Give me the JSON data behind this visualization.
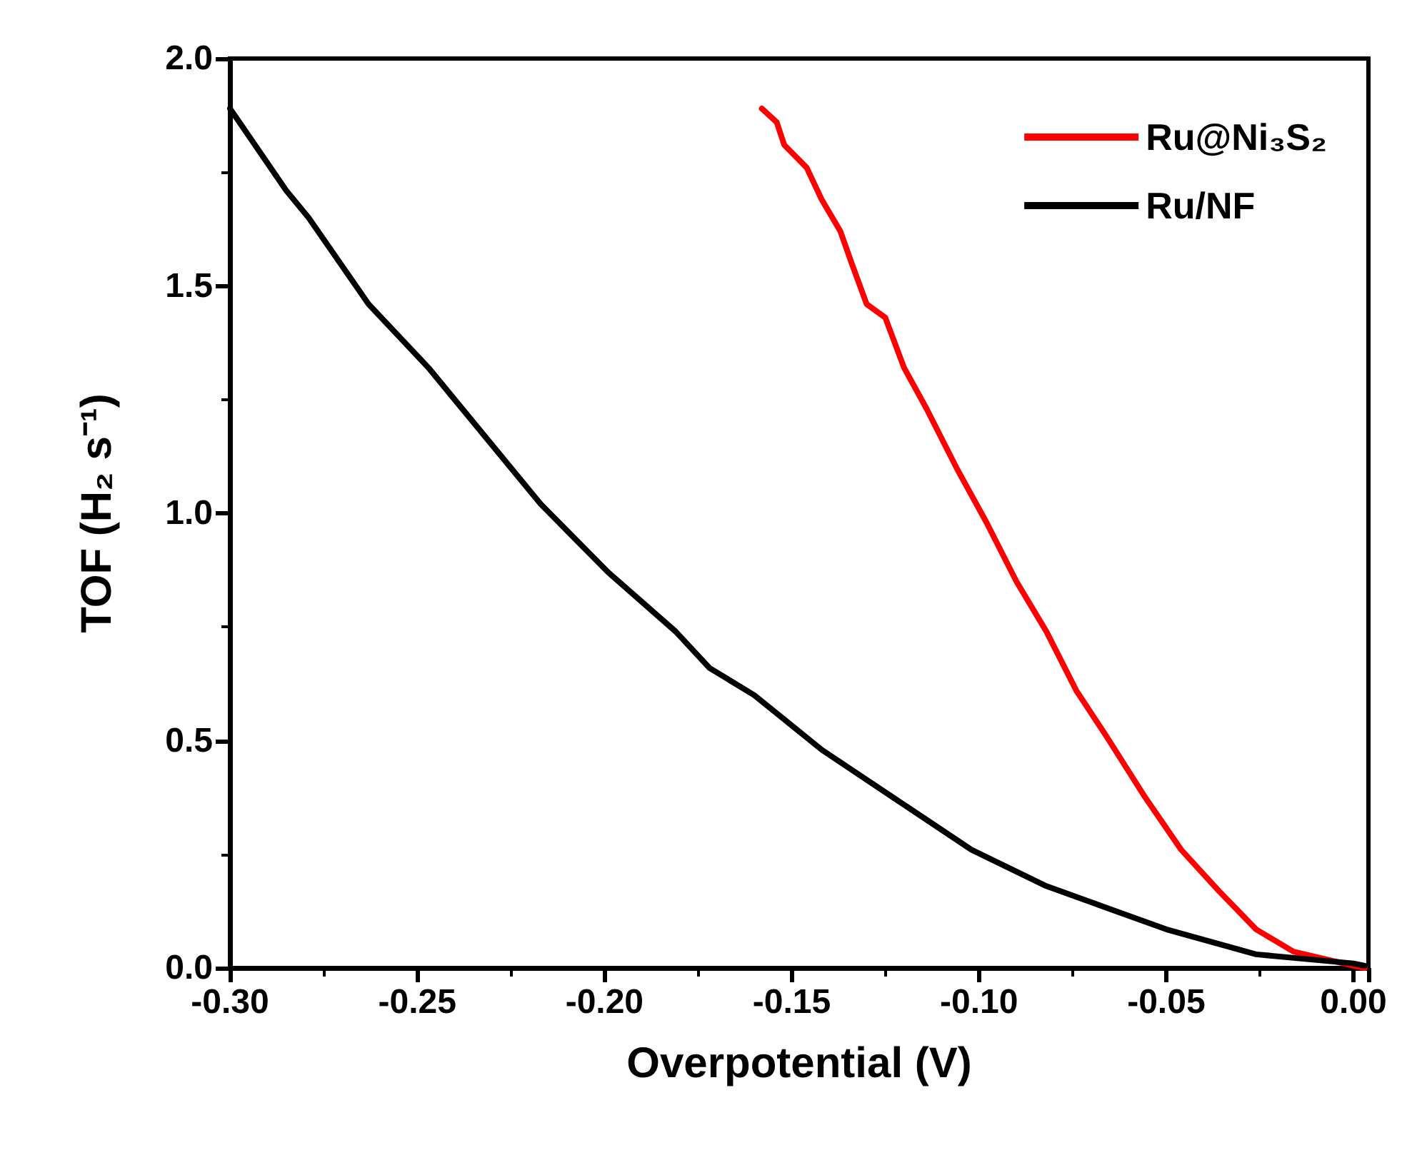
{
  "chart_data": {
    "type": "line",
    "xlabel": "Overpotential (V)",
    "ylabel": "TOF (H₂ s⁻¹)",
    "xlim": [
      -0.3,
      0.004
    ],
    "ylim": [
      0,
      2
    ],
    "xticks": [
      {
        "value": -0.3,
        "label": "-0.30"
      },
      {
        "value": -0.25,
        "label": "-0.25"
      },
      {
        "value": -0.2,
        "label": "-0.20"
      },
      {
        "value": -0.15,
        "label": "-0.15"
      },
      {
        "value": -0.1,
        "label": "-0.10"
      },
      {
        "value": -0.05,
        "label": "-0.05"
      },
      {
        "value": 0,
        "label": "0.00"
      }
    ],
    "yticks": [
      {
        "value": 0,
        "label": "0.0"
      },
      {
        "value": 0.5,
        "label": "0.5"
      },
      {
        "value": 1,
        "label": "1.0"
      },
      {
        "value": 1.5,
        "label": "1.5"
      },
      {
        "value": 2,
        "label": "2.0"
      }
    ],
    "grid": false,
    "legend": "top right",
    "marker": "none",
    "line_style": "solid",
    "series": [
      {
        "name": "Ru@Ni₃S₂",
        "color": "#ff0000",
        "x": [
          -0.158,
          -0.154,
          -0.152,
          -0.146,
          -0.142,
          -0.137,
          -0.134,
          -0.13,
          -0.125,
          -0.12,
          -0.114,
          -0.106,
          -0.098,
          -0.09,
          -0.082,
          -0.074,
          -0.066,
          -0.056,
          -0.046,
          -0.036,
          -0.026,
          -0.016,
          0.0,
          0.003
        ],
        "values": [
          1.89,
          1.86,
          1.81,
          1.76,
          1.69,
          1.62,
          1.55,
          1.46,
          1.43,
          1.32,
          1.23,
          1.1,
          0.98,
          0.85,
          0.74,
          0.61,
          0.51,
          0.38,
          0.26,
          0.17,
          0.085,
          0.036,
          0.005,
          0.0
        ]
      },
      {
        "name": "Ru/NF",
        "color": "#000000",
        "x": [
          -0.3,
          -0.285,
          -0.279,
          -0.263,
          -0.247,
          -0.233,
          -0.217,
          -0.199,
          -0.181,
          -0.172,
          -0.16,
          -0.142,
          -0.122,
          -0.102,
          -0.082,
          -0.05,
          -0.026,
          0.0,
          0.003
        ],
        "values": [
          1.89,
          1.71,
          1.65,
          1.46,
          1.32,
          1.18,
          1.02,
          0.87,
          0.74,
          0.66,
          0.6,
          0.48,
          0.37,
          0.26,
          0.18,
          0.085,
          0.03,
          0.01,
          0.005
        ]
      }
    ]
  }
}
